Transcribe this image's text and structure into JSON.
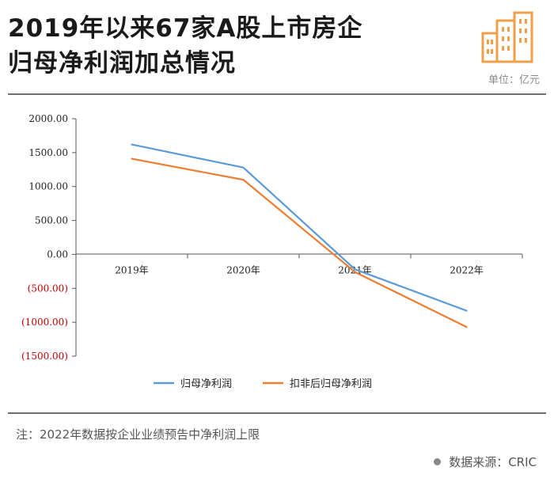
{
  "header": {
    "title_line1": "2019年以来67家A股上市房企",
    "title_line2": "归母净利润加总情况",
    "unit": "单位：亿元"
  },
  "footer": {
    "note": "注：2022年数据按企业业绩预告中净利润上限",
    "source": "数据来源：CRIC"
  },
  "colors": {
    "series1": "#5b9bd5",
    "series2": "#ed7d31",
    "axis": "#555555",
    "negative_label": "#c00000",
    "logo": "#f0a04b"
  },
  "chart_data": {
    "type": "line",
    "categories": [
      "2019年",
      "2020年",
      "2021年",
      "2022年"
    ],
    "y_tick_labels": [
      "2000.00",
      "1500.00",
      "1000.00",
      "500.00",
      "0.00",
      "(500.00)",
      "(1000.00)",
      "(1500.00)"
    ],
    "y_tick_values": [
      2000,
      1500,
      1000,
      500,
      0,
      -500,
      -1000,
      -1500
    ],
    "ylim": [
      -1500,
      2000
    ],
    "series": [
      {
        "name": "归母净利润",
        "values": [
          1620,
          1280,
          -220,
          -830
        ]
      },
      {
        "name": "扣非后归母净利润",
        "values": [
          1410,
          1100,
          -260,
          -1070
        ]
      }
    ],
    "legend_position": "bottom",
    "grid": false
  }
}
